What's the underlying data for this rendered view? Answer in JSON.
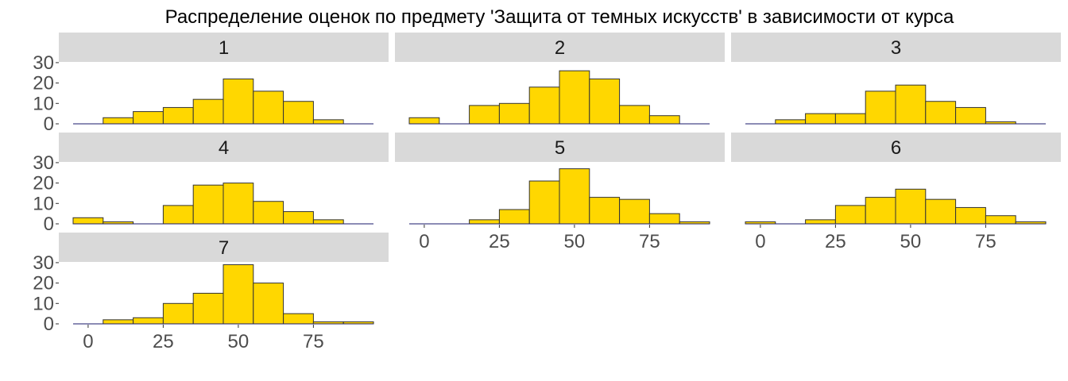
{
  "chart_data": {
    "type": "bar",
    "title": "Распределение оценок по предмету 'Защита от темных искусств' в зависимости от курса",
    "xlabel": "",
    "ylabel": "",
    "bin_edges": [
      -5,
      5,
      15,
      25,
      35,
      45,
      55,
      65,
      75,
      85,
      95
    ],
    "x_ticks": [
      0,
      25,
      50,
      75
    ],
    "y_ticks": [
      0,
      10,
      20,
      30
    ],
    "xlim": [
      -5,
      95
    ],
    "ylim": [
      0,
      30
    ],
    "fill_color": "#FFD700",
    "border_color": "#333333",
    "strip_color": "#D9D9D9",
    "grid": false,
    "facets": [
      {
        "label": "1",
        "counts": [
          0,
          3,
          6,
          8,
          12,
          22,
          16,
          11,
          2,
          0
        ]
      },
      {
        "label": "2",
        "counts": [
          3,
          0,
          9,
          10,
          18,
          26,
          22,
          9,
          4,
          0
        ]
      },
      {
        "label": "3",
        "counts": [
          0,
          2,
          5,
          5,
          16,
          19,
          11,
          8,
          1,
          0
        ]
      },
      {
        "label": "4",
        "counts": [
          3,
          1,
          0,
          9,
          19,
          20,
          11,
          6,
          2,
          0
        ]
      },
      {
        "label": "5",
        "counts": [
          0,
          0,
          2,
          7,
          21,
          27,
          13,
          12,
          5,
          1
        ]
      },
      {
        "label": "6",
        "counts": [
          1,
          0,
          2,
          9,
          13,
          17,
          12,
          8,
          4,
          1
        ]
      },
      {
        "label": "7",
        "counts": [
          0,
          2,
          3,
          10,
          15,
          29,
          20,
          5,
          1,
          1
        ]
      }
    ]
  }
}
